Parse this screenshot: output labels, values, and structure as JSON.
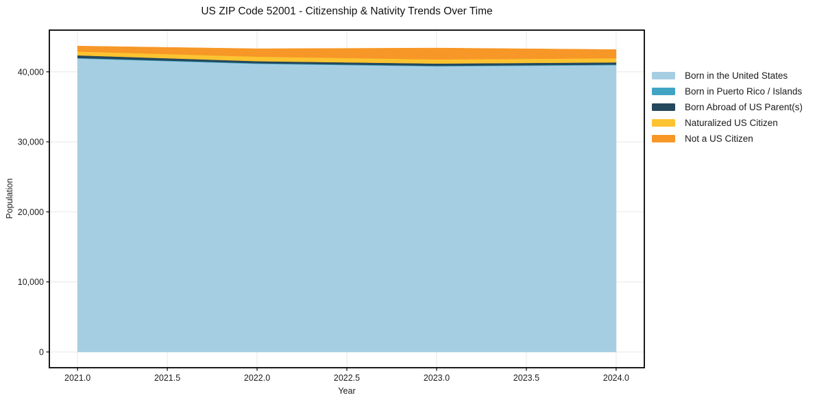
{
  "chart_data": {
    "type": "area",
    "stacked": true,
    "title": "US ZIP Code 52001 - Citizenship & Nativity Trends Over Time",
    "xlabel": "Year",
    "ylabel": "Population",
    "x": [
      2021,
      2022,
      2023,
      2024
    ],
    "series": [
      {
        "name": "Born in the United States",
        "color": "#a6cee3",
        "values": [
          41900,
          41140,
          40780,
          40950
        ]
      },
      {
        "name": "Born in Puerto Rico / Islands",
        "color": "#42a4c5",
        "values": [
          80,
          80,
          80,
          80
        ]
      },
      {
        "name": "Born Abroad of US Parent(s)",
        "color": "#24485c",
        "values": [
          370,
          300,
          320,
          320
        ]
      },
      {
        "name": "Naturalized US Citizen",
        "color": "#fcc331",
        "values": [
          550,
          640,
          590,
          590
        ]
      },
      {
        "name": "Not a US Citizen",
        "color": "#f79727",
        "values": [
          780,
          1140,
          1630,
          1240
        ]
      }
    ],
    "xlim": [
      2020.843,
      2024.157
    ],
    "ylim": [
      -2250,
      45950
    ],
    "x_ticks": {
      "values": [
        2021.0,
        2021.5,
        2022.0,
        2022.5,
        2023.0,
        2023.5,
        2024.0
      ],
      "labels": [
        "2021.0",
        "2021.5",
        "2022.0",
        "2022.5",
        "2023.0",
        "2023.5",
        "2024.0"
      ]
    },
    "y_ticks": {
      "values": [
        0,
        10000,
        20000,
        30000,
        40000
      ],
      "labels": [
        "0",
        "10,000",
        "20,000",
        "30,000",
        "40,000"
      ]
    },
    "grid": true,
    "legend_position": "right",
    "colors": {
      "grid": "#e7e7e7",
      "frame": "#000000",
      "background": "#ffffff",
      "text": "#1a1a1a"
    }
  }
}
